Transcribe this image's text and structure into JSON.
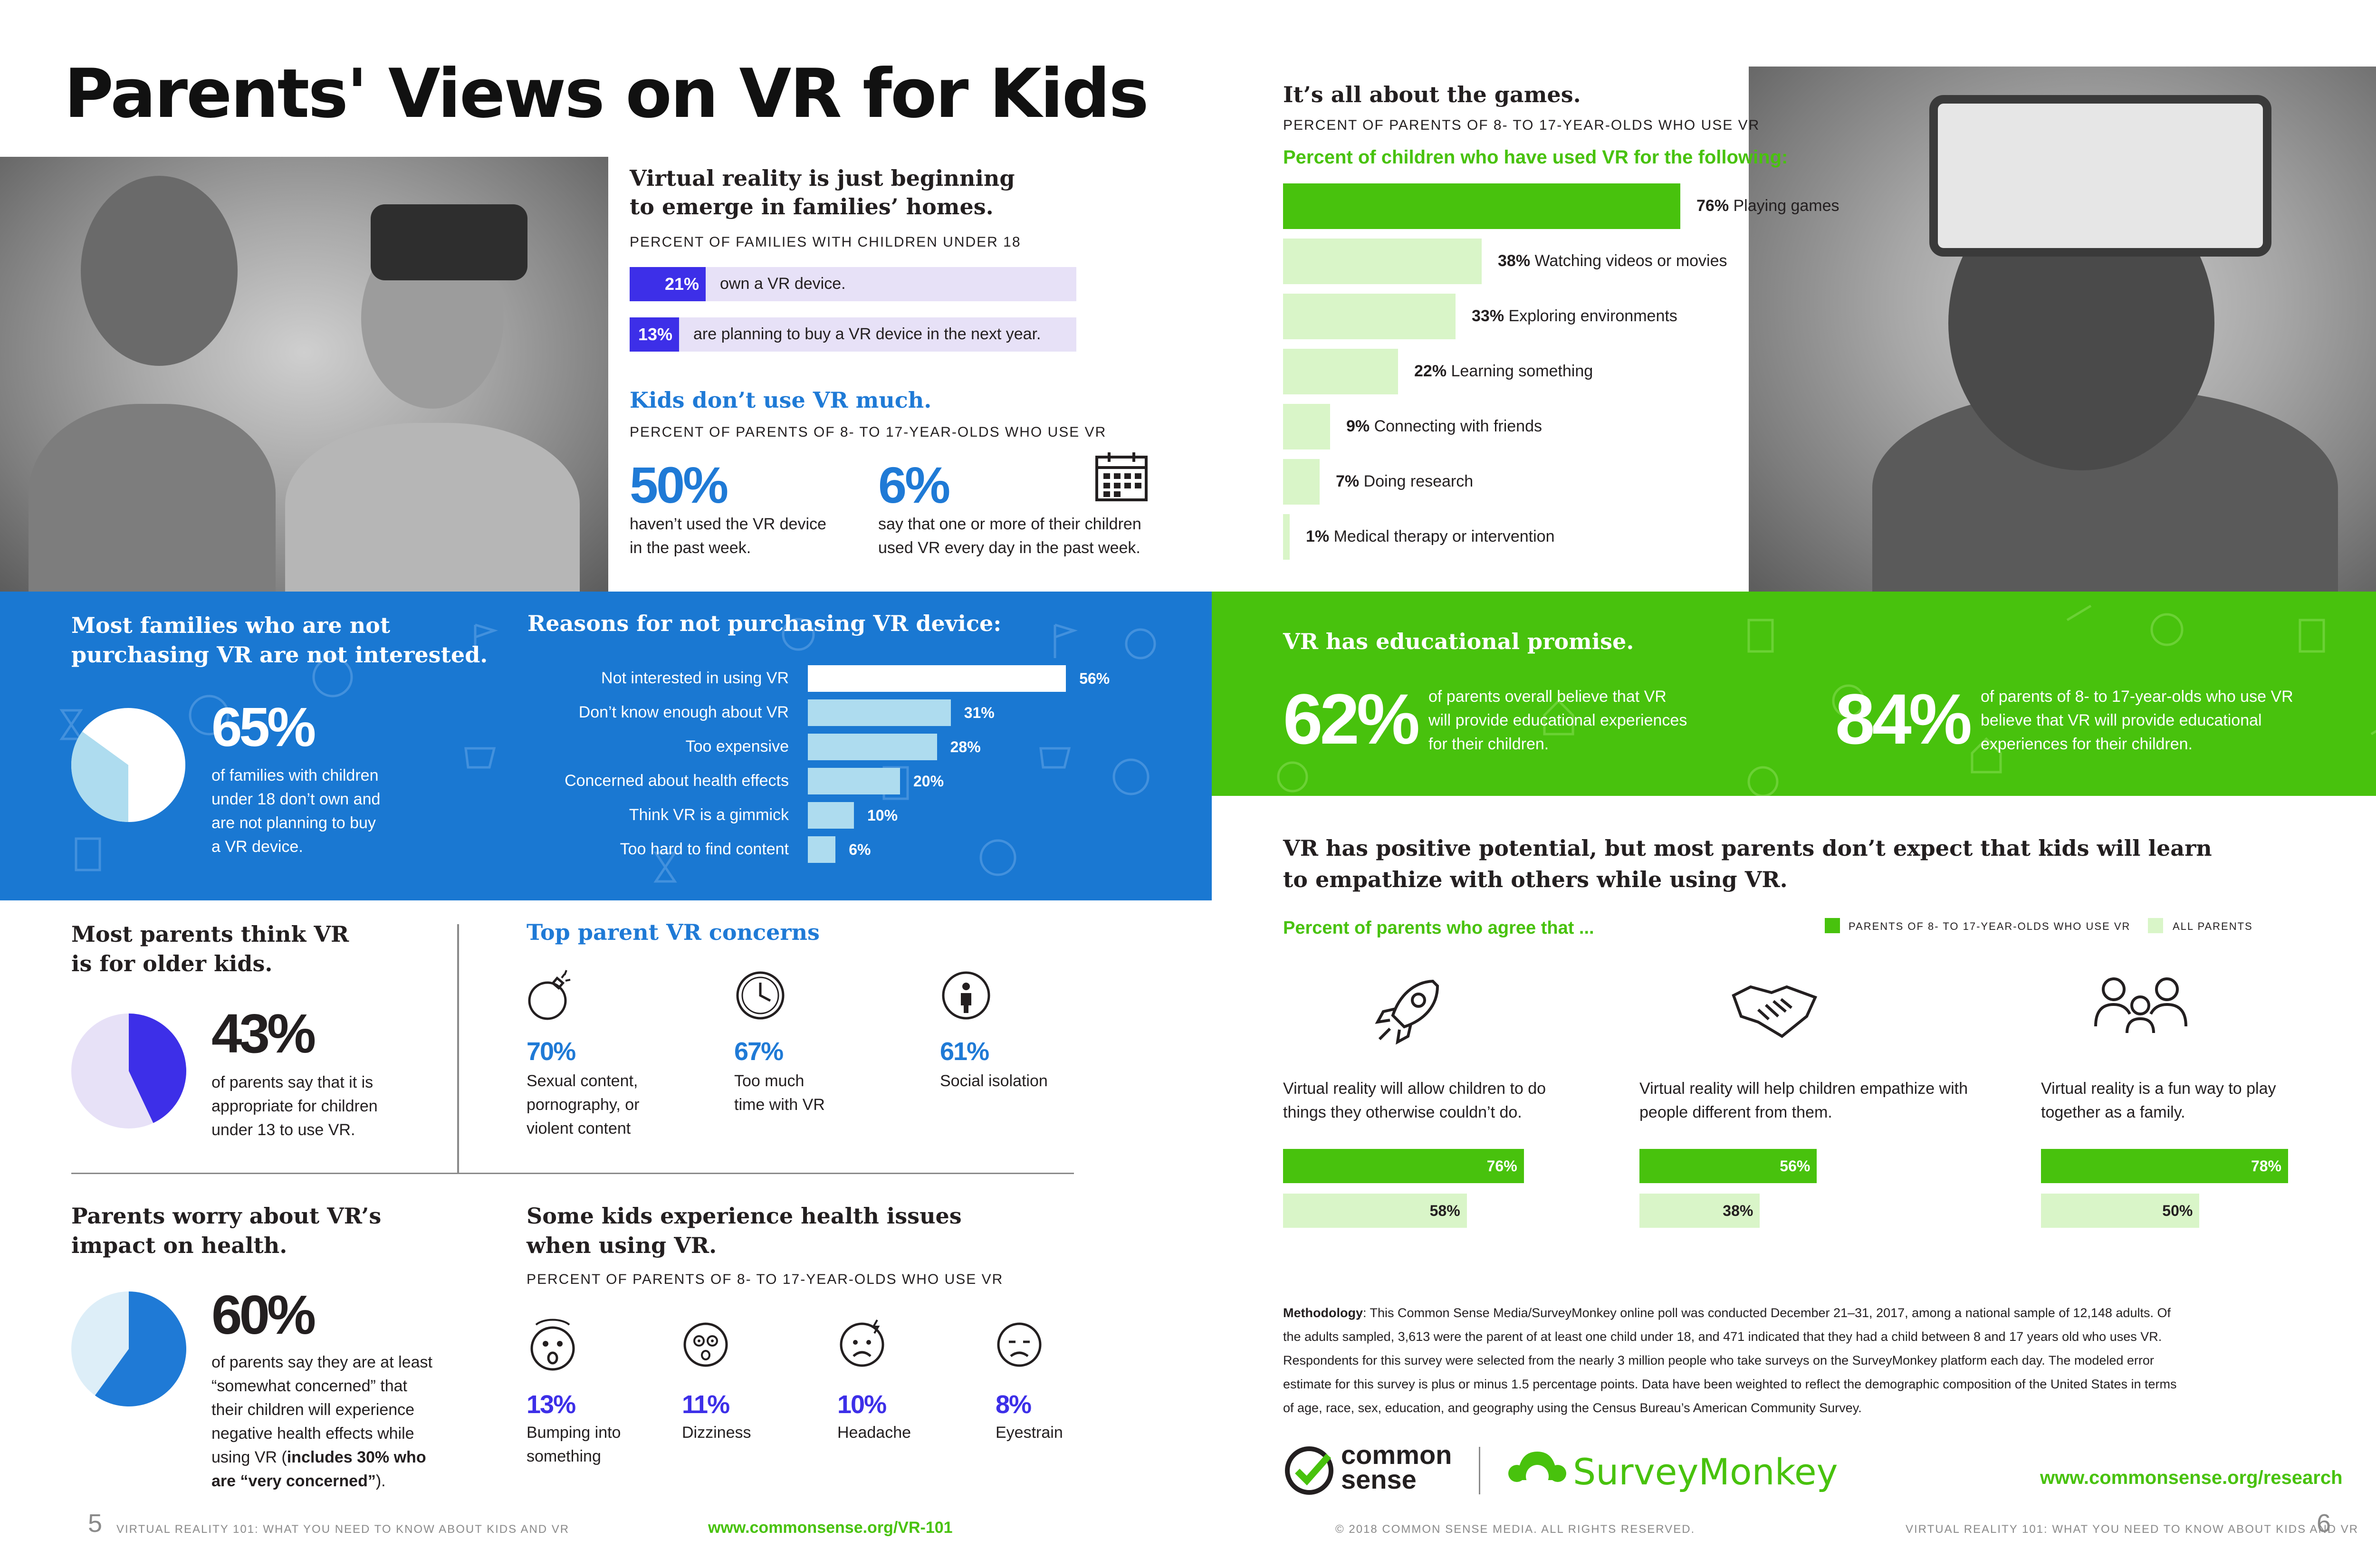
{
  "title": "Parents' Views on VR for Kids",
  "families": {
    "heading_line1": "Virtual reality is just beginning",
    "heading_line2": "to emerge in families’ homes.",
    "subhead": "PERCENT OF FAMILIES WITH CHILDREN UNDER 18",
    "rows": [
      {
        "pct": "21%",
        "value": 21,
        "text": "own a VR device."
      },
      {
        "pct": "13%",
        "value": 13,
        "text": "are planning to buy a VR device in the next year."
      }
    ]
  },
  "kids_use": {
    "heading": "Kids don’t use VR much.",
    "subhead": "PERCENT OF PARENTS OF 8- TO 17-YEAR-OLDS WHO USE VR",
    "stat1": {
      "pct": "50%",
      "line1": "haven’t used the VR device",
      "line2": "in the past week."
    },
    "stat2": {
      "pct": "6%",
      "line1": "say that one or more of their children",
      "line2": "used VR every day in the past week."
    },
    "calendar_icon": "calendar-icon"
  },
  "not_interested": {
    "heading_line1": "Most families who are not",
    "heading_line2": "purchasing VR are not interested.",
    "pct": "65%",
    "value": 65,
    "lines": [
      "of families with children",
      "under 18 don’t own and",
      "are not planning to buy",
      "a VR device."
    ]
  },
  "reasons": {
    "heading": "Reasons for not purchasing VR device:",
    "items": [
      {
        "label": "Not interested in using VR",
        "pct": "56%",
        "value": 56
      },
      {
        "label": "Don’t know enough about VR",
        "pct": "31%",
        "value": 31
      },
      {
        "label": "Too expensive",
        "pct": "28%",
        "value": 28
      },
      {
        "label": "Concerned about health effects",
        "pct": "20%",
        "value": 20
      },
      {
        "label": "Think VR is a gimmick",
        "pct": "10%",
        "value": 10
      },
      {
        "label": "Too hard to find content",
        "pct": "6%",
        "value": 6
      }
    ]
  },
  "older_kids": {
    "heading_line1": "Most parents think VR",
    "heading_line2": "is for older kids.",
    "pct": "43%",
    "value": 43,
    "lines": [
      "of parents say that it is",
      "appropriate for children",
      "under 13 to use VR."
    ]
  },
  "concerns": {
    "heading": "Top parent VR concerns",
    "items": [
      {
        "pct": "70%",
        "icon": "bomb-icon",
        "lines": [
          "Sexual content,",
          "pornography, or",
          "violent content"
        ]
      },
      {
        "pct": "67%",
        "icon": "clock-icon",
        "lines": [
          "Too much",
          "time with VR"
        ]
      },
      {
        "pct": "61%",
        "icon": "person-icon",
        "lines": [
          "Social isolation"
        ]
      }
    ]
  },
  "health": {
    "heading_line1": "Parents worry about VR’s",
    "heading_line2": "impact on health.",
    "pct": "60%",
    "value": 60,
    "lines": [
      "of parents say they are at least",
      "“somewhat concerned” that",
      "their children will experience",
      "negative health effects while"
    ],
    "last_line_prefix": "using VR (",
    "last_line_bold": "includes 30% who",
    "final_bold": "are “very concerned”",
    "final_suffix": ")."
  },
  "health_issues": {
    "heading_line1": "Some kids experience health issues",
    "heading_line2": "when using VR.",
    "subhead": "PERCENT OF PARENTS OF 8- TO 17-YEAR-OLDS WHO USE VR",
    "items": [
      {
        "pct": "13%",
        "icon": "dizzy-face-icon",
        "lines": [
          "Bumping into",
          "something"
        ]
      },
      {
        "pct": "11%",
        "icon": "spiral-eyes-face-icon",
        "lines": [
          "Dizziness"
        ]
      },
      {
        "pct": "10%",
        "icon": "headache-face-icon",
        "lines": [
          "Headache"
        ]
      },
      {
        "pct": "8%",
        "icon": "tired-face-icon",
        "lines": [
          "Eyestrain"
        ]
      }
    ]
  },
  "games": {
    "heading": "It’s all about the games.",
    "subhead": "PERCENT OF PARENTS OF 8- TO 17-YEAR-OLDS WHO USE VR",
    "chart_title": "Percent of children who have used VR for the following:"
  },
  "chart_data": {
    "type": "bar",
    "title": "Percent of children who have used VR for the following:",
    "categories": [
      "Playing games",
      "Watching videos or movies",
      "Exploring environments",
      "Learning something",
      "Connecting with friends",
      "Doing research",
      "Medical therapy or intervention"
    ],
    "values": [
      76,
      38,
      33,
      22,
      9,
      7,
      1
    ],
    "labels": [
      "76%",
      "38%",
      "33%",
      "22%",
      "9%",
      "7%",
      "1%"
    ]
  },
  "educational": {
    "heading": "VR has educational promise.",
    "stat1": {
      "pct": "62%",
      "lines": [
        "of parents overall believe that VR",
        "will provide educational experiences",
        "for their children."
      ]
    },
    "stat2": {
      "pct": "84%",
      "lines": [
        "of parents of 8- to 17-year-olds who use VR",
        "believe that VR will provide educational",
        "experiences for their children."
      ]
    }
  },
  "empathy": {
    "heading_line1": "VR has positive potential, but most parents don’t expect that kids will learn",
    "heading_line2": "to empathize with others while using VR.",
    "agree_label": "Percent of parents who agree that ...",
    "legend": [
      {
        "label": "PARENTS OF 8- TO 17-YEAR-OLDS WHO USE VR",
        "color": "#48c20d"
      },
      {
        "label": "ALL PARENTS",
        "color": "#d9f5c8"
      }
    ],
    "items": [
      {
        "icon": "rocket-icon",
        "lines": [
          "Virtual reality will allow children to do",
          "things they otherwise couldn’t do."
        ],
        "vr_pct": "76%",
        "vr_value": 76,
        "all_pct": "58%",
        "all_value": 58
      },
      {
        "icon": "handshake-icon",
        "lines": [
          "Virtual reality will help children empathize with",
          "people different from them."
        ],
        "vr_pct": "56%",
        "vr_value": 56,
        "all_pct": "38%",
        "all_value": 38
      },
      {
        "icon": "family-icon",
        "lines": [
          "Virtual reality is a fun way to play",
          "together as a family."
        ],
        "vr_pct": "78%",
        "vr_value": 78,
        "all_pct": "50%",
        "all_value": 50
      }
    ]
  },
  "methodology": {
    "label": "Methodology",
    "lines": [
      ": This Common Sense Media/SurveyMonkey online poll was conducted December 21–31, 2017, among a national sample of 12,148 adults. Of",
      "the adults sampled, 3,613 were the parent of at least one child under 18, and 471 indicated that they had a child between 8 and 17 years old who uses VR.",
      "Respondents for this survey were selected from the nearly 3 million people who take surveys on the SurveyMonkey platform each day. The modeled error",
      "estimate for this survey is plus or minus 1.5 percentage points. Data have been weighted to reflect the demographic composition of the United States in terms",
      "of age, race, sex, education, and geography using the Census Bureau’s American Community Survey."
    ]
  },
  "logos": {
    "commonsense_line1": "common",
    "commonsense_line2": "sense",
    "surveymonkey": "SurveyMonkey",
    "url_prefix": "www.commonsense.org/",
    "url_bold": "research"
  },
  "footer": {
    "left_page": "5",
    "left_text": "VIRTUAL REALITY 101: WHAT YOU NEED TO KNOW ABOUT KIDS AND VR",
    "left_url": "www.commonsense.org/VR-101",
    "copyright": "© 2018 COMMON SENSE MEDIA. ALL RIGHTS RESERVED.",
    "right_text": "VIRTUAL REALITY 101: WHAT YOU NEED TO KNOW ABOUT KIDS AND VR",
    "right_page": "6"
  },
  "colors": {
    "purple": "#3d2fe8",
    "lavender": "#e7e1f7",
    "blue": "#1a78d2",
    "green": "#48c20d",
    "light_green": "#d9f5c8",
    "light_blue": "#aedcef"
  }
}
